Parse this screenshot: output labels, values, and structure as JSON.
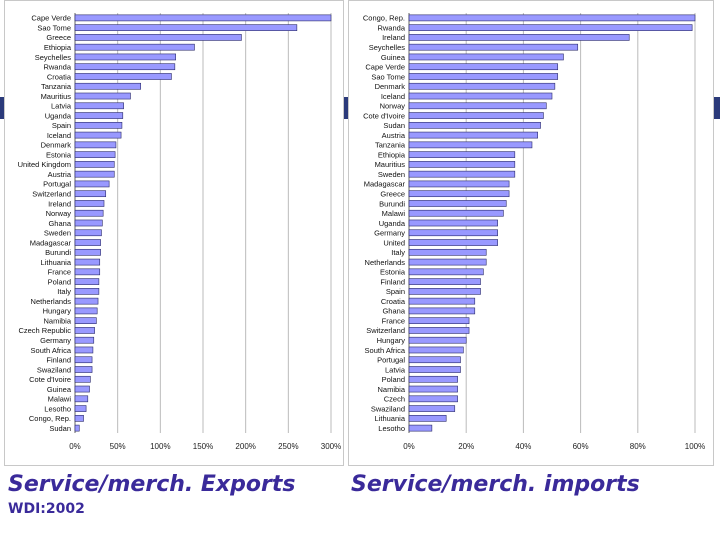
{
  "captions": {
    "left": "Service/merch. Exports",
    "right": "Service/merch. imports",
    "source": "WDI:2002"
  },
  "colors": {
    "bar_fill": "#9999ff",
    "bar_stroke": "#2a2a6a",
    "caption": "#3a2a9a",
    "band": "#2b3a7a"
  },
  "chart_data": [
    {
      "type": "bar",
      "orientation": "horizontal",
      "title": "",
      "xlabel": "",
      "ylabel": "",
      "xlim": [
        0,
        300
      ],
      "xticks": [
        0,
        50,
        100,
        150,
        200,
        250,
        300
      ],
      "tick_labels": [
        "0%",
        "50%",
        "100%",
        "150%",
        "200%",
        "250%",
        "300%"
      ],
      "grid": true,
      "categories": [
        "Cape Verde",
        "Sao Tome",
        "Greece",
        "Ethiopia",
        "Seychelles",
        "Rwanda",
        "Croatia",
        "Tanzania",
        "Mauritius",
        "Latvia",
        "Uganda",
        "Spain",
        "Iceland",
        "Denmark",
        "Estonia",
        "United Kingdom",
        "Austria",
        "Portugal",
        "Switzerland",
        "Ireland",
        "Norway",
        "Ghana",
        "Sweden",
        "Madagascar",
        "Burundi",
        "Lithuania",
        "France",
        "Poland",
        "Italy",
        "Netherlands",
        "Hungary",
        "Namibia",
        "Czech Republic",
        "Germany",
        "South Africa",
        "Finland",
        "Swaziland",
        "Cote d'Ivoire",
        "Guinea",
        "Malawi",
        "Lesotho",
        "Congo, Rep.",
        "Sudan"
      ],
      "values": [
        300,
        260,
        195,
        140,
        118,
        117,
        113,
        77,
        65,
        57,
        56,
        55,
        54,
        48,
        47,
        46,
        46,
        40,
        36,
        34,
        33,
        32,
        31,
        30,
        30,
        29,
        29,
        28,
        28,
        27,
        26,
        25,
        23,
        22,
        21,
        20,
        20,
        18,
        17,
        15,
        13,
        10,
        5
      ]
    },
    {
      "type": "bar",
      "orientation": "horizontal",
      "title": "",
      "xlabel": "",
      "ylabel": "",
      "xlim": [
        0,
        100
      ],
      "xticks": [
        0,
        20,
        40,
        60,
        80,
        100
      ],
      "tick_labels": [
        "0%",
        "20%",
        "40%",
        "60%",
        "80%",
        "100%"
      ],
      "grid": true,
      "categories": [
        "Congo, Rep.",
        "Rwanda",
        "Ireland",
        "Seychelles",
        "Guinea",
        "Cape Verde",
        "Sao Tome",
        "Denmark",
        "Iceland",
        "Norway",
        "Cote d'Ivoire",
        "Sudan",
        "Austria",
        "Tanzania",
        "Ethiopia",
        "Mauritius",
        "Sweden",
        "Madagascar",
        "Greece",
        "Burundi",
        "Malawi",
        "Uganda",
        "Germany",
        "United",
        "Italy",
        "Netherlands",
        "Estonia",
        "Finland",
        "Spain",
        "Croatia",
        "Ghana",
        "France",
        "Switzerland",
        "Hungary",
        "South Africa",
        "Portugal",
        "Latvia",
        "Poland",
        "Namibia",
        "Czech",
        "Swaziland",
        "Lithuania",
        "Lesotho"
      ],
      "values": [
        100,
        99,
        77,
        59,
        54,
        52,
        52,
        51,
        50,
        48,
        47,
        46,
        45,
        43,
        37,
        37,
        37,
        35,
        35,
        34,
        33,
        31,
        31,
        31,
        27,
        27,
        26,
        25,
        25,
        23,
        23,
        21,
        21,
        20,
        19,
        18,
        18,
        17,
        17,
        17,
        16,
        13,
        8
      ]
    }
  ]
}
